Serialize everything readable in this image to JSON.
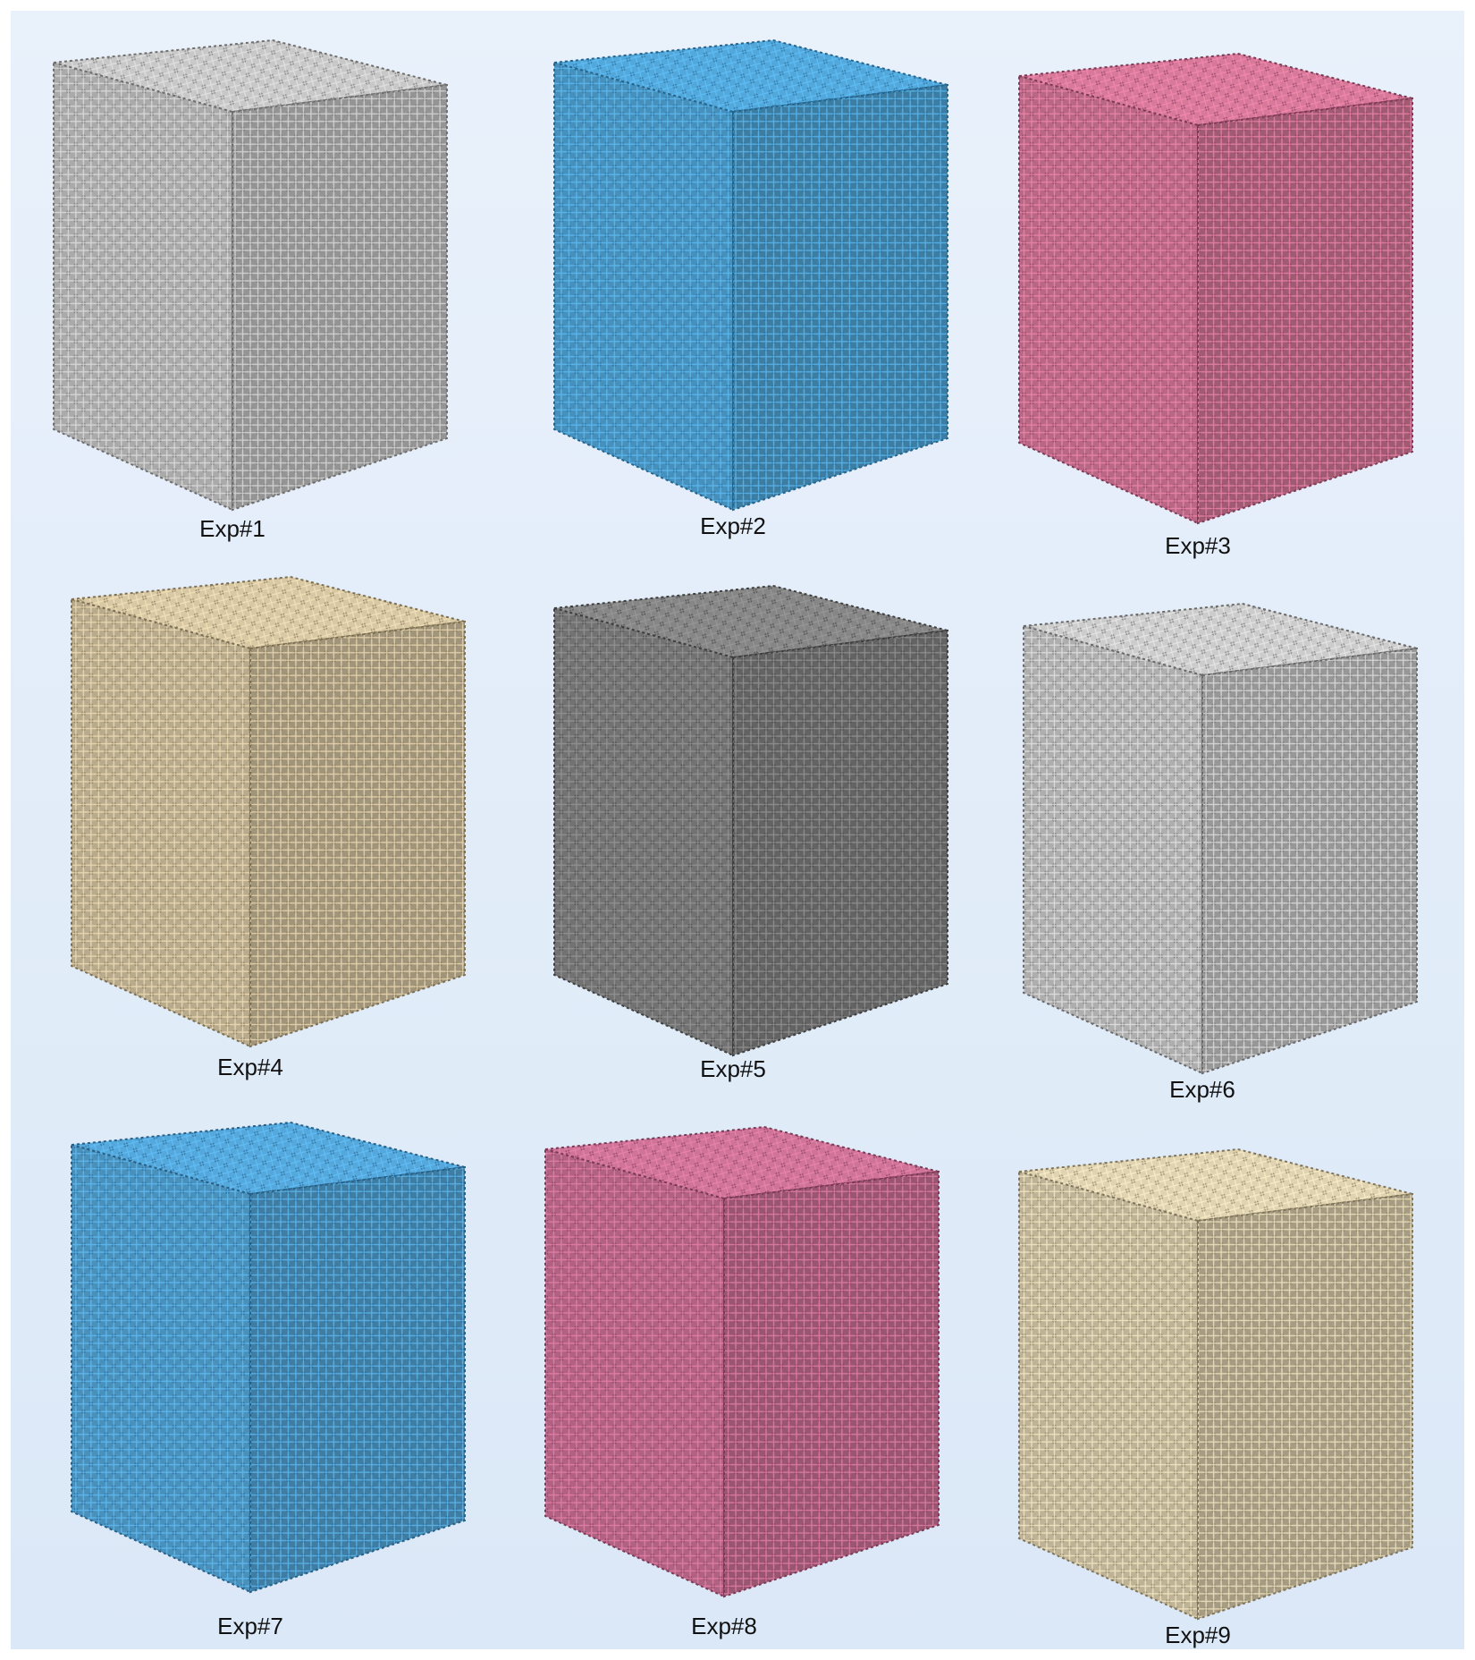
{
  "panels": [
    {
      "label": "Exp#1"
    },
    {
      "label": "Exp#2"
    },
    {
      "label": "Exp#3"
    },
    {
      "label": "Exp#4"
    },
    {
      "label": "Exp#5"
    },
    {
      "label": "Exp#6"
    },
    {
      "label": "Exp#7"
    },
    {
      "label": "Exp#8"
    },
    {
      "label": "Exp#9"
    }
  ]
}
